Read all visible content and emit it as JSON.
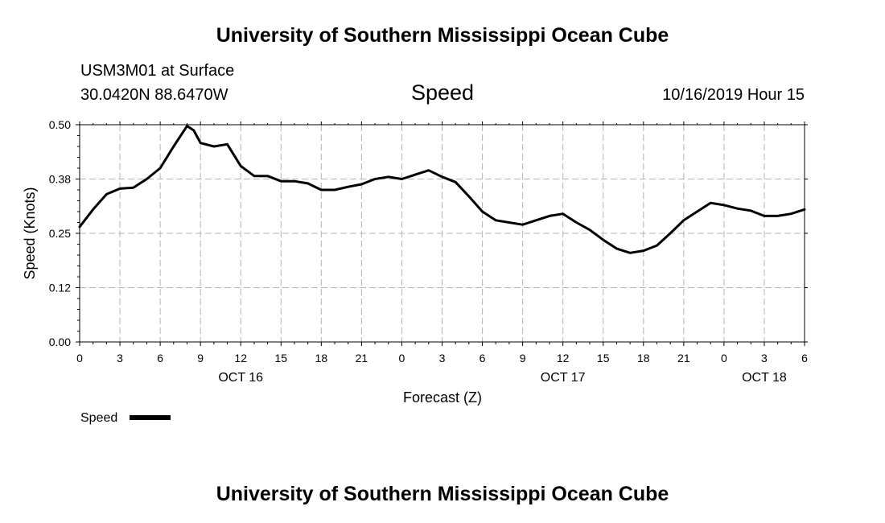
{
  "header": {
    "title": "University of Southern Mississippi Ocean Cube",
    "station": "USM3M01 at Surface",
    "location": "30.0420N 88.6470W",
    "variable": "Speed",
    "valid_time": "10/16/2019 Hour 15"
  },
  "footer": {
    "title": "University of Southern Mississippi Ocean Cube"
  },
  "colors": {
    "line": "#000000",
    "grid": "#b4b4b4",
    "background": "#ffffff"
  },
  "chart_data": {
    "type": "line",
    "title": "Speed",
    "xlabel": "Forecast (Z)",
    "ylabel": "Speed (Knots)",
    "xlim": [
      0,
      54
    ],
    "ylim": [
      0,
      0.5
    ],
    "grid": true,
    "x_tick_labels": [
      "0",
      "3",
      "6",
      "9",
      "12",
      "15",
      "18",
      "21",
      "0",
      "3",
      "6",
      "9",
      "12",
      "15",
      "18",
      "21",
      "0",
      "3",
      "6"
    ],
    "date_labels": [
      {
        "x": 12,
        "label": "OCT 16"
      },
      {
        "x": 36,
        "label": "OCT 17"
      },
      {
        "x": 51,
        "label": "OCT 18"
      }
    ],
    "y_ticks": [
      0,
      0.125,
      0.25,
      0.375,
      0.5
    ],
    "y_tick_labels": [
      "0.00",
      "0.12",
      "0.25",
      "0.38",
      "0.50"
    ],
    "legend": {
      "position": "bottom-left",
      "label": "Speed"
    },
    "series": [
      {
        "name": "Speed",
        "x": [
          0,
          1,
          2,
          3,
          4,
          5,
          6,
          7,
          8,
          8.5,
          9,
          10,
          11,
          12,
          13,
          14,
          15,
          16,
          17,
          18,
          19,
          20,
          21,
          22,
          23,
          24,
          25,
          26,
          27,
          28,
          29,
          30,
          31,
          32,
          33,
          34,
          35,
          36,
          37,
          38,
          39,
          40,
          41,
          42,
          43,
          44,
          45,
          46,
          47,
          48,
          49,
          50,
          51,
          52,
          53,
          54
        ],
        "y": [
          0.265,
          0.305,
          0.34,
          0.353,
          0.355,
          0.375,
          0.4,
          0.45,
          0.497,
          0.487,
          0.458,
          0.45,
          0.455,
          0.405,
          0.382,
          0.382,
          0.37,
          0.37,
          0.365,
          0.35,
          0.35,
          0.357,
          0.363,
          0.375,
          0.38,
          0.375,
          0.385,
          0.395,
          0.38,
          0.368,
          0.335,
          0.3,
          0.28,
          0.275,
          0.27,
          0.28,
          0.29,
          0.295,
          0.275,
          0.258,
          0.235,
          0.215,
          0.205,
          0.21,
          0.222,
          0.25,
          0.28,
          0.3,
          0.32,
          0.315,
          0.307,
          0.302,
          0.29,
          0.29,
          0.295,
          0.305
        ]
      }
    ]
  }
}
